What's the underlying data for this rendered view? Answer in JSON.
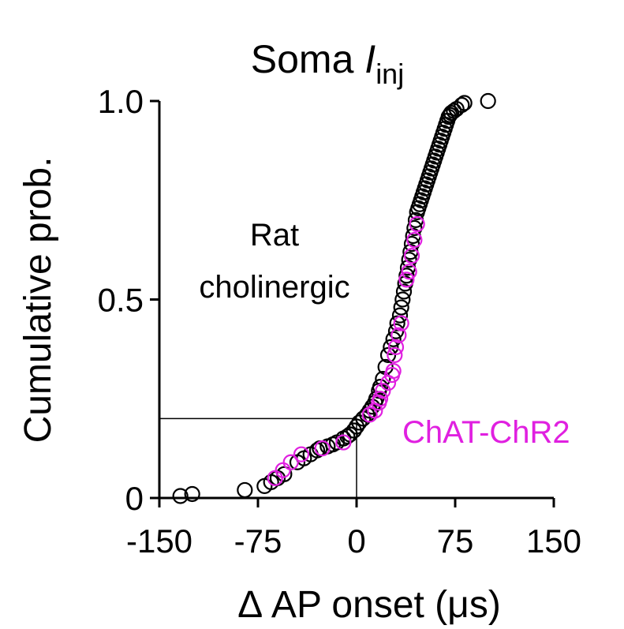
{
  "chart_data": {
    "type": "scatter",
    "title": {
      "main": "Soma ",
      "italic": "I",
      "subscript": "inj"
    },
    "xlabel": "Δ AP onset (μs)",
    "ylabel": "Cumulative prob.",
    "xlim": [
      -150,
      150
    ],
    "ylim": [
      0,
      1
    ],
    "x_ticks": [
      -150,
      -75,
      0,
      75,
      150
    ],
    "x_tick_labels": [
      "-150",
      "-75",
      "0",
      "75",
      "150"
    ],
    "y_ticks": [
      0,
      0.5,
      1
    ],
    "y_tick_labels": [
      "0",
      "0.5",
      "1.0"
    ],
    "grid": false,
    "annotations": {
      "rat_line1": "Rat",
      "rat_line2": "cholinergic",
      "chat_label": "ChAT-ChR2"
    },
    "reference_lines": {
      "x": 0,
      "y": 0.2
    },
    "colors": {
      "rat": "#000000",
      "chat": "#e020e0"
    },
    "series": [
      {
        "name": "Rat cholinergic",
        "color": "#000000",
        "x": [
          -134,
          -125,
          -85,
          -70,
          -65,
          -60,
          -55,
          -45,
          -40,
          -35,
          -30,
          -28,
          -22,
          -18,
          -15,
          -10,
          -7,
          -5,
          -2,
          0,
          2,
          5,
          8,
          10,
          12,
          14,
          15,
          17,
          18,
          20,
          22,
          24,
          26,
          28,
          30,
          31,
          33,
          34,
          35,
          36,
          37,
          38,
          39,
          40,
          41,
          42,
          43,
          44,
          45,
          46,
          47,
          48,
          49,
          50,
          51,
          52,
          53,
          54,
          55,
          56,
          57,
          58,
          59,
          60,
          61,
          62,
          63,
          64,
          65,
          66,
          67,
          68,
          69,
          70,
          71,
          72,
          74,
          76,
          80,
          82,
          100
        ],
        "y": [
          0.005,
          0.01,
          0.02,
          0.03,
          0.04,
          0.05,
          0.06,
          0.09,
          0.1,
          0.11,
          0.12,
          0.125,
          0.13,
          0.135,
          0.14,
          0.15,
          0.155,
          0.16,
          0.17,
          0.18,
          0.19,
          0.2,
          0.21,
          0.22,
          0.23,
          0.24,
          0.25,
          0.27,
          0.28,
          0.3,
          0.33,
          0.36,
          0.38,
          0.4,
          0.42,
          0.44,
          0.46,
          0.48,
          0.5,
          0.52,
          0.54,
          0.56,
          0.58,
          0.6,
          0.62,
          0.64,
          0.66,
          0.68,
          0.7,
          0.72,
          0.73,
          0.74,
          0.75,
          0.76,
          0.77,
          0.78,
          0.79,
          0.8,
          0.81,
          0.82,
          0.83,
          0.84,
          0.85,
          0.86,
          0.87,
          0.88,
          0.89,
          0.9,
          0.91,
          0.92,
          0.93,
          0.94,
          0.95,
          0.96,
          0.965,
          0.97,
          0.975,
          0.98,
          0.99,
          0.995,
          1.0
        ]
      },
      {
        "name": "ChAT-ChR2",
        "color": "#e020e0",
        "x": [
          -62,
          -56,
          -50,
          -42,
          -26,
          -10,
          10,
          14,
          17,
          18,
          20,
          24,
          27,
          28,
          29,
          30,
          32,
          34,
          38,
          40,
          42,
          44,
          46
        ],
        "y": [
          0.05,
          0.07,
          0.09,
          0.11,
          0.125,
          0.14,
          0.21,
          0.22,
          0.24,
          0.25,
          0.27,
          0.29,
          0.31,
          0.32,
          0.36,
          0.38,
          0.41,
          0.44,
          0.55,
          0.57,
          0.61,
          0.65,
          0.69
        ]
      }
    ]
  }
}
